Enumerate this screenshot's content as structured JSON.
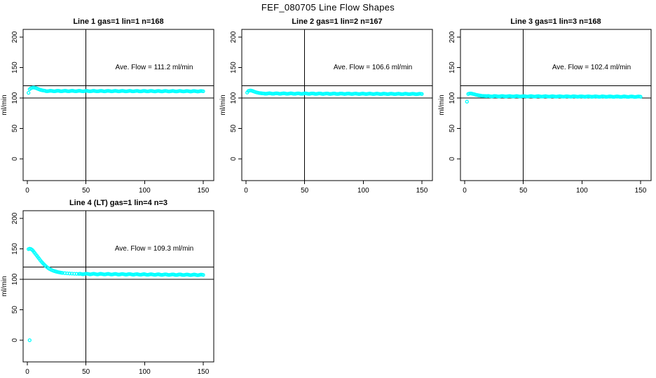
{
  "title": "FEF_080705  Line Flow Shapes",
  "colors": {
    "point_color": "#00FFFF",
    "line_color": "#000000",
    "background": "#FFFFFF"
  },
  "axes": {
    "x_ticks": [
      0,
      50,
      100,
      150
    ],
    "y_ticks": [
      0,
      50,
      100,
      150,
      200
    ],
    "ylabel": "ml/min",
    "xlim": [
      -4,
      159
    ],
    "ylim": [
      -36,
      212
    ],
    "ref_vline": 50,
    "ref_hlines": [
      100,
      120
    ],
    "grid": "off"
  },
  "chart_data": [
    {
      "type": "scatter",
      "title": "Line 1 gas=1 lin=1 n=168",
      "annotation": "Ave. Flow =  111.2  ml/min",
      "ave_flow_ml_min": 111.2,
      "ylabel": "ml/min",
      "points": [
        [
          1,
          108.5
        ],
        [
          2,
          114.5
        ],
        [
          3,
          116
        ],
        [
          4,
          116.8
        ],
        [
          5,
          117.2
        ],
        [
          6,
          117
        ],
        [
          7,
          116.5
        ],
        [
          8,
          115.8
        ],
        [
          9,
          115
        ],
        [
          10,
          114.2
        ],
        [
          11,
          113.5
        ],
        [
          12,
          113
        ],
        [
          13,
          112.5
        ],
        [
          14,
          112.2
        ],
        [
          15,
          111.9
        ]
      ],
      "tail": {
        "from": 16,
        "to": 150,
        "step": 1,
        "start_value": 111.5,
        "end_value": 111.1,
        "jitter": 0.4
      }
    },
    {
      "type": "scatter",
      "title": "Line 2 gas=1 lin=2 n=167",
      "annotation": "Ave. Flow =  106.6  ml/min",
      "ave_flow_ml_min": 106.6,
      "ylabel": "ml/min",
      "points": [
        [
          1,
          109
        ],
        [
          2,
          111.5
        ],
        [
          3,
          112.2
        ],
        [
          4,
          112.3
        ],
        [
          5,
          112
        ],
        [
          6,
          111.3
        ],
        [
          7,
          110.5
        ],
        [
          8,
          109.8
        ],
        [
          9,
          109.2
        ],
        [
          10,
          108.7
        ],
        [
          11,
          108.3
        ],
        [
          12,
          108
        ],
        [
          13,
          107.8
        ],
        [
          14,
          107.6
        ],
        [
          15,
          107.5
        ]
      ],
      "tail": {
        "from": 16,
        "to": 150,
        "step": 1,
        "start_value": 107.4,
        "end_value": 106.6,
        "jitter": 0.4
      }
    },
    {
      "type": "scatter",
      "title": "Line 3 gas=1 lin=3 n=168",
      "annotation": "Ave. Flow =  102.4  ml/min",
      "ave_flow_ml_min": 102.4,
      "ylabel": "ml/min",
      "points": [
        [
          2,
          94
        ],
        [
          3,
          106.5
        ],
        [
          4,
          107.3
        ],
        [
          5,
          107.5
        ],
        [
          6,
          107.2
        ],
        [
          7,
          106.8
        ],
        [
          8,
          106.3
        ],
        [
          9,
          105.8
        ],
        [
          10,
          105.2
        ],
        [
          11,
          104.8
        ],
        [
          12,
          104.4
        ],
        [
          13,
          104.1
        ],
        [
          14,
          103.8
        ],
        [
          15,
          103.5
        ],
        [
          16,
          103.4
        ],
        [
          17,
          103.3
        ],
        [
          18,
          103.2
        ],
        [
          19,
          103.1
        ]
      ],
      "tail": {
        "from": 20,
        "to": 150,
        "step": 1,
        "start_value": 103.0,
        "end_value": 102.1,
        "jitter": 0.4
      }
    },
    {
      "type": "scatter",
      "title": "Line 4 (LT) gas=1 lin=4 n=3",
      "annotation": "Ave. Flow =  109.3  ml/min",
      "ave_flow_ml_min": 109.3,
      "ylabel": "ml/min",
      "points": [
        [
          2,
          0
        ],
        [
          1,
          149.5
        ],
        [
          2,
          150.2
        ],
        [
          3,
          149.8
        ],
        [
          4,
          148.5
        ],
        [
          5,
          146.5
        ],
        [
          6,
          144
        ],
        [
          7,
          141.5
        ],
        [
          8,
          139
        ],
        [
          9,
          136.5
        ],
        [
          10,
          134
        ],
        [
          11,
          131.5
        ],
        [
          12,
          129
        ],
        [
          13,
          127
        ],
        [
          14,
          125
        ],
        [
          15,
          123
        ],
        [
          16,
          121.2
        ],
        [
          17,
          119.6
        ],
        [
          18,
          118.2
        ],
        [
          19,
          117
        ],
        [
          20,
          116
        ],
        [
          21,
          115.1
        ],
        [
          22,
          114.3
        ],
        [
          23,
          113.6
        ],
        [
          24,
          113
        ],
        [
          25,
          112.4
        ],
        [
          26,
          111.9
        ],
        [
          27,
          111.5
        ],
        [
          28,
          111.1
        ],
        [
          29,
          110.8
        ],
        [
          30,
          110.5
        ],
        [
          32,
          110.1
        ],
        [
          34,
          109.8
        ],
        [
          36,
          109.5
        ],
        [
          38,
          109.3
        ],
        [
          40,
          109.1
        ],
        [
          42,
          109
        ],
        [
          44,
          108.9
        ]
      ],
      "tail": {
        "from": 45,
        "to": 150,
        "step": 1,
        "start_value": 108.8,
        "end_value": 107.2,
        "jitter": 0.5
      }
    }
  ]
}
